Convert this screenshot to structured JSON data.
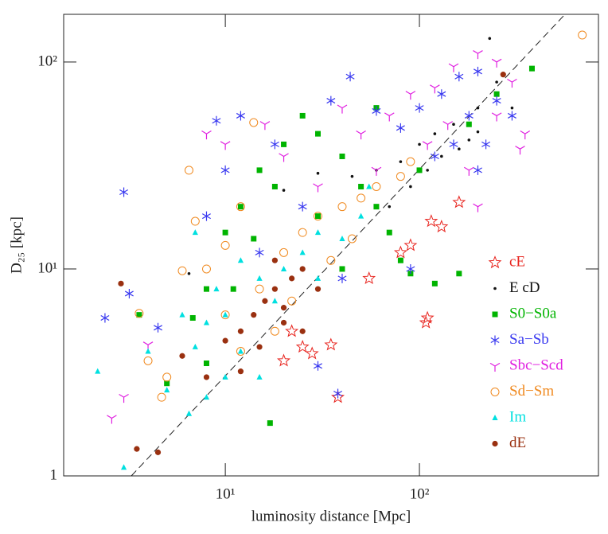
{
  "chart_data": {
    "type": "scatter",
    "xlabel": "luminosity distance [Mpc]",
    "ylabel": "D₂₅ [kpc]",
    "xscale": "log",
    "yscale": "log",
    "xlim": [
      1.47,
      836
    ],
    "ylim": [
      1,
      170
    ],
    "xticks": [
      {
        "value": 10,
        "label": "10¹"
      },
      {
        "value": 100,
        "label": "10²"
      }
    ],
    "yticks": [
      1,
      {
        "value": 10,
        "label": "10¹"
      },
      {
        "value": 100,
        "label": "10²"
      }
    ],
    "legend": "lower right",
    "reference_line": {
      "x": [
        3.28,
        562
      ],
      "y": [
        1,
        170
      ],
      "color": "#222",
      "dash": true
    },
    "series": [
      {
        "name": "cE",
        "color": "#e8241e",
        "marker": "star",
        "x": [
          108,
          110,
          38,
          25,
          22,
          28,
          35,
          20,
          55,
          80,
          90,
          115,
          130,
          160
        ],
        "values": [
          5.5,
          5.8,
          2.4,
          4.2,
          5.0,
          3.9,
          4.3,
          3.6,
          9,
          12,
          13,
          17,
          16,
          21
        ]
      },
      {
        "name": "E cD",
        "color": "#111111",
        "marker": "dot",
        "x": [
          6.5,
          20,
          30,
          45,
          60,
          80,
          100,
          120,
          150,
          180,
          200,
          250,
          230,
          300,
          130,
          90,
          70,
          160,
          110,
          200
        ],
        "values": [
          9.5,
          24,
          29,
          28,
          30,
          33,
          40,
          45,
          50,
          42,
          60,
          80,
          130,
          60,
          35,
          25,
          20,
          38,
          30,
          46
        ]
      },
      {
        "name": "S0−S0a",
        "color": "#00b400",
        "marker": "square",
        "x": [
          3.6,
          5,
          6.8,
          8,
          10,
          12,
          15,
          20,
          25,
          30,
          40,
          50,
          60,
          70,
          80,
          90,
          120,
          160,
          17,
          380,
          250,
          180,
          100,
          30,
          40,
          14,
          18,
          11,
          8,
          60
        ],
        "values": [
          6,
          2.8,
          5.8,
          8,
          15,
          20,
          30,
          40,
          55,
          45,
          35,
          25,
          20,
          15,
          11,
          9.5,
          8.5,
          9.5,
          1.8,
          93,
          70,
          50,
          30,
          18,
          10,
          14,
          25,
          8,
          3.5,
          60
        ]
      },
      {
        "name": "Sa−Sb",
        "color": "#3a3af0",
        "marker": "asterisk",
        "x": [
          3,
          2.4,
          3.2,
          4.5,
          9,
          12,
          18,
          35,
          44,
          60,
          80,
          100,
          130,
          160,
          200,
          250,
          300,
          150,
          120,
          200,
          90,
          40,
          30,
          38,
          8,
          10,
          15,
          25,
          180,
          220
        ],
        "values": [
          23.5,
          5.8,
          7.6,
          5.2,
          52,
          55,
          40,
          65,
          85,
          58,
          48,
          60,
          70,
          85,
          90,
          65,
          55,
          40,
          35,
          30,
          10,
          9,
          3.4,
          2.5,
          18,
          30,
          12,
          20,
          55,
          40
        ]
      },
      {
        "name": "Sbc−Scd",
        "color": "#e020e0",
        "marker": "tri",
        "x": [
          2.6,
          3,
          8,
          10,
          16,
          20,
          40,
          50,
          70,
          90,
          120,
          150,
          200,
          250,
          300,
          350,
          180,
          140,
          110,
          250,
          60,
          30,
          4,
          330,
          200
        ],
        "values": [
          1.9,
          2.4,
          45,
          40,
          50,
          35,
          60,
          45,
          55,
          70,
          75,
          95,
          110,
          100,
          80,
          45,
          30,
          50,
          40,
          55,
          30,
          25,
          4.3,
          38,
          20
        ]
      },
      {
        "name": "Sd−Sm",
        "color": "#f08a20",
        "marker": "circle",
        "x": [
          3.6,
          4,
          4.7,
          5,
          6,
          6.5,
          7,
          8,
          10,
          12,
          14,
          10,
          15,
          20,
          25,
          30,
          40,
          50,
          60,
          80,
          90,
          18,
          22,
          690,
          12,
          35,
          45
        ],
        "values": [
          6.1,
          3.6,
          2.4,
          3,
          9.8,
          30,
          17,
          10,
          13,
          20,
          51,
          6,
          8,
          12,
          15,
          18,
          20,
          22,
          25,
          28,
          33,
          5,
          7,
          135,
          4,
          11,
          14
        ]
      },
      {
        "name": "Im",
        "color": "#00e0e0",
        "marker": "triangle",
        "x": [
          2.2,
          3,
          4,
          5,
          6,
          6.5,
          7,
          8,
          9,
          10,
          12,
          15,
          18,
          20,
          25,
          30,
          40,
          50,
          8,
          12,
          15,
          7,
          10,
          30,
          55
        ],
        "values": [
          3.2,
          1.1,
          4,
          2.6,
          6,
          2,
          4.2,
          5.5,
          8,
          6,
          11,
          9,
          7,
          10,
          12,
          15,
          14,
          18,
          2.4,
          4,
          3,
          15,
          3,
          9,
          25
        ]
      },
      {
        "name": "dE",
        "color": "#9a3010",
        "marker": "disc",
        "x": [
          2.9,
          3.5,
          4.5,
          6,
          8,
          10,
          12,
          14,
          16,
          18,
          20,
          22,
          25,
          30,
          12,
          15,
          20,
          270,
          18,
          25
        ],
        "values": [
          8.5,
          1.35,
          1.3,
          3.8,
          3,
          4.5,
          5,
          6,
          7,
          8,
          6.5,
          9,
          10,
          8,
          3.2,
          4.2,
          5.5,
          87,
          11,
          5
        ]
      }
    ]
  }
}
